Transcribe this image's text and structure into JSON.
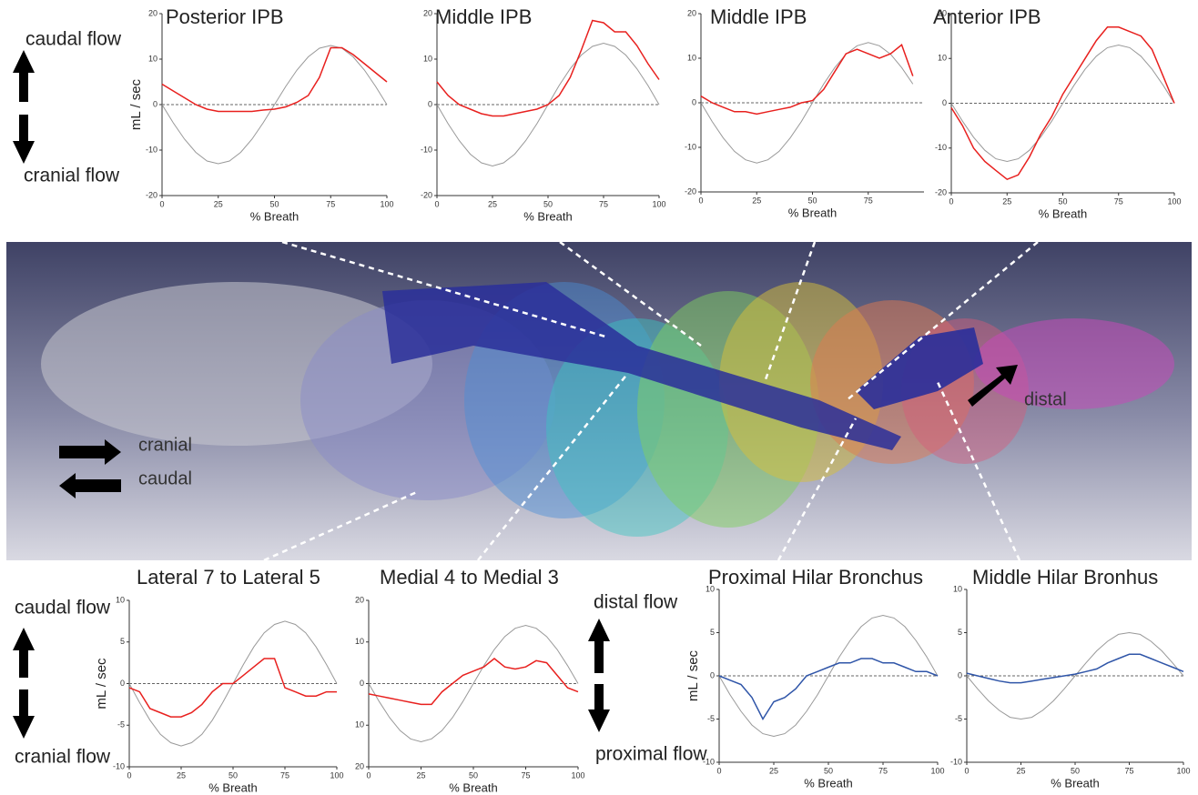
{
  "chart_data": [
    {
      "type": "line",
      "title": "Posterior IPB",
      "xlabel": "% Breath",
      "ylabel": "mL / sec",
      "x": [
        0,
        5,
        10,
        15,
        20,
        25,
        30,
        35,
        40,
        45,
        50,
        55,
        60,
        65,
        70,
        75,
        80,
        85,
        90,
        95,
        100
      ],
      "xlim": [
        0,
        100
      ],
      "xticks": [
        0,
        25,
        50,
        75,
        100
      ],
      "ylim": [
        -20,
        20
      ],
      "yticks": [
        -20,
        -10,
        0,
        10,
        20
      ],
      "series": [
        {
          "color": "#e8201e",
          "values": [
            4.5,
            3,
            1.5,
            0,
            -1,
            -1.5,
            -1.5,
            -1.5,
            -1.5,
            -1.2,
            -1,
            -0.5,
            0.5,
            2,
            6,
            12.5,
            12.5,
            11,
            9,
            7,
            5
          ]
        },
        {
          "color": "#999999",
          "values": [
            0,
            -4,
            -7.6,
            -10.5,
            -12.4,
            -13,
            -12.4,
            -10.5,
            -7.6,
            -4,
            0,
            4,
            7.6,
            10.5,
            12.4,
            13,
            12.4,
            10.5,
            7.6,
            4,
            0
          ]
        }
      ]
    },
    {
      "type": "line",
      "title": "Middle IPB",
      "xlabel": "% Breath",
      "x": [
        0,
        5,
        10,
        15,
        20,
        25,
        30,
        35,
        40,
        45,
        50,
        55,
        60,
        65,
        70,
        75,
        80,
        85,
        90,
        95,
        100
      ],
      "xlim": [
        0,
        100
      ],
      "xticks": [
        0,
        25,
        50,
        75,
        100
      ],
      "ylim": [
        -20,
        20
      ],
      "yticks": [
        -20,
        -10,
        0,
        10,
        20
      ],
      "series": [
        {
          "color": "#e8201e",
          "values": [
            5,
            2,
            0,
            -1,
            -2,
            -2.5,
            -2.5,
            -2,
            -1.5,
            -1,
            0,
            2,
            6,
            12,
            18.5,
            18,
            16,
            16,
            13,
            9,
            5.5
          ]
        },
        {
          "color": "#999999",
          "values": [
            0,
            -4.2,
            -7.9,
            -10.9,
            -12.8,
            -13.5,
            -12.8,
            -10.9,
            -7.9,
            -4.2,
            0,
            4.2,
            7.9,
            10.9,
            12.8,
            13.5,
            12.8,
            10.9,
            7.9,
            4.2,
            0
          ]
        }
      ]
    },
    {
      "type": "line",
      "title": "Middle IPB",
      "xlabel": "% Breath",
      "x": [
        0,
        5,
        10,
        15,
        20,
        25,
        30,
        35,
        40,
        45,
        50,
        55,
        60,
        65,
        70,
        75,
        80,
        85,
        90,
        95,
        100
      ],
      "xlim": [
        0,
        100
      ],
      "xticks": [
        0,
        25,
        50,
        75
      ],
      "ylim": [
        -20,
        20
      ],
      "yticks": [
        -20,
        -10,
        0,
        10,
        20
      ],
      "series": [
        {
          "color": "#e8201e",
          "values": [
            1.5,
            0,
            -1,
            -2,
            -2,
            -2.5,
            -2,
            -1.5,
            -1,
            0,
            0.5,
            3,
            7,
            11,
            12,
            11,
            10,
            11,
            13,
            6,
            null
          ]
        },
        {
          "color": "#999999",
          "values": [
            0,
            -4.2,
            -7.9,
            -10.9,
            -12.8,
            -13.5,
            -12.8,
            -10.9,
            -7.9,
            -4.2,
            0,
            4.2,
            7.9,
            10.9,
            12.8,
            13.5,
            12.8,
            10.9,
            7.9,
            4.2,
            null
          ]
        }
      ]
    },
    {
      "type": "line",
      "title": "Anterior IPB",
      "xlabel": "% Breath",
      "x": [
        0,
        5,
        10,
        15,
        20,
        25,
        30,
        35,
        40,
        45,
        50,
        55,
        60,
        65,
        70,
        75,
        80,
        85,
        90,
        95,
        100
      ],
      "xlim": [
        0,
        100
      ],
      "xticks": [
        0,
        25,
        50,
        75,
        100
      ],
      "ylim": [
        -20,
        20
      ],
      "yticks": [
        -20,
        -10,
        0,
        10,
        20
      ],
      "series": [
        {
          "color": "#e8201e",
          "values": [
            -1,
            -5,
            -10,
            -13,
            -15,
            -17,
            -16,
            -12,
            -7,
            -3,
            2,
            6,
            10,
            14,
            17,
            17,
            16,
            15,
            12,
            6,
            0
          ]
        },
        {
          "color": "#999999",
          "values": [
            0,
            -4,
            -7.6,
            -10.5,
            -12.4,
            -13,
            -12.4,
            -10.5,
            -7.6,
            -4,
            0,
            4,
            7.6,
            10.5,
            12.4,
            13,
            12.4,
            10.5,
            7.6,
            4,
            0
          ]
        }
      ]
    },
    {
      "type": "line",
      "title": "Lateral 7 to Lateral 5",
      "xlabel": "% Breath",
      "ylabel": "mL / sec",
      "x": [
        0,
        5,
        10,
        15,
        20,
        25,
        30,
        35,
        40,
        45,
        50,
        55,
        60,
        65,
        70,
        75,
        80,
        85,
        90,
        95,
        100
      ],
      "xlim": [
        0,
        100
      ],
      "xticks": [
        0,
        25,
        50,
        75,
        100
      ],
      "ylim": [
        -10,
        10
      ],
      "yticks": [
        -10,
        -5,
        0,
        5,
        10
      ],
      "series": [
        {
          "color": "#e8201e",
          "values": [
            -0.5,
            -1,
            -3,
            -3.5,
            -4,
            -4,
            -3.5,
            -2.5,
            -1,
            0,
            0,
            1,
            2,
            3,
            3,
            -0.5,
            -1,
            -1.5,
            -1.5,
            -1,
            -1
          ]
        },
        {
          "color": "#999999",
          "values": [
            0,
            -2.3,
            -4.4,
            -6.1,
            -7.1,
            -7.5,
            -7.1,
            -6.1,
            -4.4,
            -2.3,
            0,
            2.3,
            4.4,
            6.1,
            7.1,
            7.5,
            7.1,
            6.1,
            4.4,
            2.3,
            0
          ]
        }
      ]
    },
    {
      "type": "line",
      "title": "Medial 4 to Medial 3",
      "xlabel": "% Breath",
      "x": [
        0,
        5,
        10,
        15,
        20,
        25,
        30,
        35,
        40,
        45,
        50,
        55,
        60,
        65,
        70,
        75,
        80,
        85,
        90,
        95,
        100
      ],
      "xlim": [
        0,
        100
      ],
      "xticks": [
        0,
        25,
        50,
        75,
        100
      ],
      "ylim": [
        -20,
        20
      ],
      "yticks": [
        {
          "value": -20,
          "label": "20"
        },
        {
          "value": -10,
          "label": "10"
        },
        0,
        10,
        20
      ],
      "series": [
        {
          "color": "#e8201e",
          "values": [
            -2.5,
            -3,
            -3.5,
            -4,
            -4.5,
            -5,
            -5,
            -2,
            0,
            2,
            3,
            4,
            6,
            4,
            3.5,
            4,
            5.5,
            5,
            2,
            -1,
            -2
          ]
        },
        {
          "color": "#999999",
          "values": [
            0,
            -4.3,
            -8.2,
            -11.3,
            -13.3,
            -14,
            -13.3,
            -11.3,
            -8.2,
            -4.3,
            0,
            4.3,
            8.2,
            11.3,
            13.3,
            14,
            13.3,
            11.3,
            8.2,
            4.3,
            0
          ]
        }
      ]
    },
    {
      "type": "line",
      "title": "Proximal Hilar Bronchus",
      "xlabel": "% Breath",
      "ylabel": "mL / sec",
      "x": [
        0,
        5,
        10,
        15,
        20,
        25,
        30,
        35,
        40,
        45,
        50,
        55,
        60,
        65,
        70,
        75,
        80,
        85,
        90,
        95,
        100
      ],
      "xlim": [
        0,
        100
      ],
      "xticks": [
        0,
        25,
        50,
        75,
        100
      ],
      "ylim": [
        -10,
        10
      ],
      "yticks": [
        -10,
        -5,
        0,
        5,
        10
      ],
      "series": [
        {
          "color": "#2f55a8",
          "values": [
            0,
            -0.5,
            -1,
            -2.5,
            -5,
            -3,
            -2.5,
            -1.5,
            0,
            0.5,
            1,
            1.5,
            1.5,
            2,
            2,
            1.5,
            1.5,
            1,
            0.5,
            0.5,
            0
          ]
        },
        {
          "color": "#999999",
          "values": [
            0,
            -2.2,
            -4.1,
            -5.7,
            -6.7,
            -7,
            -6.7,
            -5.7,
            -4.1,
            -2.2,
            0,
            2.2,
            4.1,
            5.7,
            6.7,
            7,
            6.7,
            5.7,
            4.1,
            2.2,
            0
          ]
        }
      ]
    },
    {
      "type": "line",
      "title": "Middle Hilar Bronhus",
      "xlabel": "% Breath",
      "x": [
        0,
        5,
        10,
        15,
        20,
        25,
        30,
        35,
        40,
        45,
        50,
        55,
        60,
        65,
        70,
        75,
        80,
        85,
        90,
        95,
        100
      ],
      "xlim": [
        0,
        100
      ],
      "xticks": [
        0,
        25,
        50,
        75,
        100
      ],
      "ylim": [
        -10,
        10
      ],
      "yticks": [
        -10,
        -5,
        0,
        5,
        10
      ],
      "series": [
        {
          "color": "#2f55a8",
          "values": [
            0.3,
            0,
            -0.3,
            -0.6,
            -0.8,
            -0.8,
            -0.6,
            -0.4,
            -0.2,
            0,
            0.2,
            0.5,
            0.8,
            1.5,
            2,
            2.5,
            2.5,
            2,
            1.5,
            1,
            0.5
          ]
        },
        {
          "color": "#999999",
          "values": [
            0,
            -1.5,
            -2.9,
            -4,
            -4.8,
            -5,
            -4.8,
            -4,
            -2.9,
            -1.5,
            0,
            1.5,
            2.9,
            4,
            4.8,
            5,
            4.8,
            4,
            2.9,
            1.5,
            0
          ]
        }
      ]
    }
  ],
  "labels": {
    "caudal_flow_top": "caudal flow",
    "cranial_flow_top": "cranial flow",
    "caudal_flow_bottom": "caudal flow",
    "cranial_flow_bottom": "cranial flow",
    "distal_flow": "distal flow",
    "proximal_flow": "proximal flow",
    "cranial": "cranial",
    "caudal": "caudal",
    "distal": "distal"
  }
}
